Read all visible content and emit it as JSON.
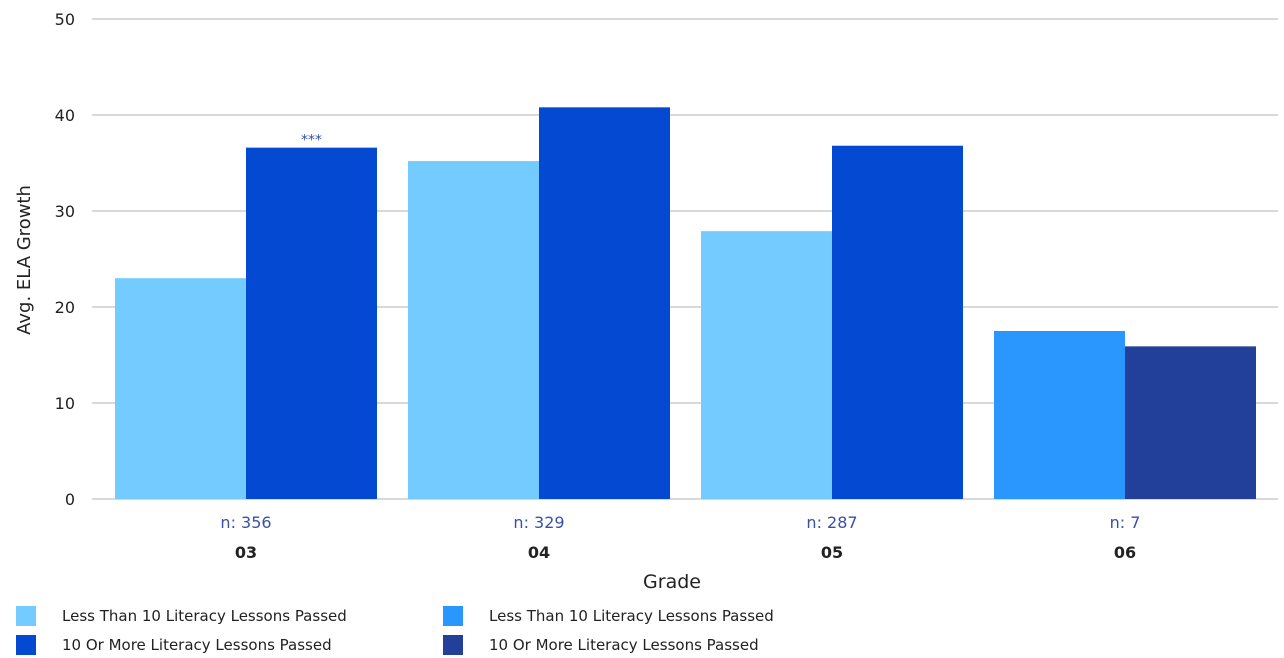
{
  "chart_data": {
    "type": "bar",
    "xlabel": "Grade",
    "ylabel": "Avg. ELA Growth",
    "ylim": [
      0,
      50
    ],
    "yticks": [
      0,
      10,
      20,
      30,
      40,
      50
    ],
    "grid": true,
    "legend_placement": "bottom-left",
    "categories": [
      "03",
      "04",
      "05",
      "06"
    ],
    "n_labels": [
      "n: 356",
      "n: 329",
      "n: 287",
      "n: 7"
    ],
    "groups": [
      {
        "category": "03",
        "bars": [
          {
            "series": "Less Than 10 Literacy Lessons Passed",
            "value": 23.0,
            "color": "#73CBFF"
          },
          {
            "series": "10 Or More Literacy Lessons Passed",
            "value": 36.6,
            "color": "#0349D2",
            "annotation": "***"
          }
        ]
      },
      {
        "category": "04",
        "bars": [
          {
            "series": "Less Than 10 Literacy Lessons Passed",
            "value": 35.2,
            "color": "#73CBFF"
          },
          {
            "series": "10 Or More Literacy Lessons Passed",
            "value": 40.8,
            "color": "#0349D2"
          }
        ]
      },
      {
        "category": "05",
        "bars": [
          {
            "series": "Less Than 10 Literacy Lessons Passed",
            "value": 27.9,
            "color": "#73CBFF"
          },
          {
            "series": "10 Or More Literacy Lessons Passed",
            "value": 36.8,
            "color": "#0349D2"
          }
        ]
      },
      {
        "category": "06",
        "bars": [
          {
            "series": "Less Than 10 Literacy Lessons Passed",
            "value": 17.5,
            "color": "#2A97FF"
          },
          {
            "series": "10 Or More Literacy Lessons Passed",
            "value": 15.9,
            "color": "#223F99"
          }
        ]
      }
    ],
    "legend": [
      {
        "label": "Less Than 10 Literacy Lessons Passed",
        "color": "#73CBFF"
      },
      {
        "label": "Less Than 10 Literacy Lessons Passed",
        "color": "#2A97FF"
      },
      {
        "label": "10 Or More Literacy Lessons Passed",
        "color": "#0349D2"
      },
      {
        "label": "10 Or More Literacy Lessons Passed",
        "color": "#223F99"
      }
    ],
    "colors": {
      "gridline": "#B3B3B3",
      "axis_text": "#222222",
      "n_label": "#3A50A8",
      "annotation": "#3A50A8"
    }
  }
}
